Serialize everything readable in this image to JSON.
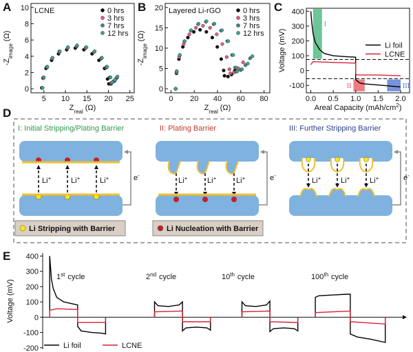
{
  "chart_data": [
    {
      "type": "scatter",
      "panel_label": "A",
      "annotation": "LCNE",
      "x_label": {
        "text": "Z",
        "sub": "real",
        "unit": "(Ω)"
      },
      "y_label": {
        "text": "-Z",
        "sub": "image",
        "unit": "(Ω)"
      },
      "xlim": [
        2,
        26
      ],
      "ylim": [
        -0.5,
        10.5
      ],
      "xticks": [
        5,
        10,
        15,
        20,
        25
      ],
      "yticks": [
        0,
        2,
        4,
        6,
        8,
        10
      ],
      "frame": true,
      "legend": "upper right",
      "series": [
        {
          "name": "0 hrs",
          "color": "#111111",
          "x": [
            4.5,
            4.8,
            5.5,
            6.8,
            8.4,
            10.3,
            12.3,
            14.3,
            16.2,
            17.8,
            19.1,
            19.8,
            20.1,
            20.6,
            21.2
          ],
          "values": [
            0.1,
            1.3,
            2.5,
            3.5,
            4.3,
            4.8,
            5.0,
            4.8,
            4.3,
            3.5,
            2.5,
            1.2,
            0.6,
            0.6,
            0.9
          ]
        },
        {
          "name": "3 hrs",
          "color": "#e0607e",
          "x": [
            4.6,
            4.9,
            5.7,
            6.9,
            8.6,
            10.5,
            12.6,
            14.7,
            16.6,
            18.3,
            19.5,
            20.3,
            20.6,
            21.3,
            21.9
          ],
          "values": [
            0.1,
            1.3,
            2.6,
            3.7,
            4.5,
            5.0,
            5.2,
            5.0,
            4.5,
            3.7,
            2.6,
            1.4,
            0.7,
            0.9,
            1.3
          ]
        },
        {
          "name": "7 hrs",
          "color": "#4a7f8f",
          "x": [
            4.6,
            4.9,
            5.7,
            7.0,
            8.6,
            10.6,
            12.7,
            14.8,
            16.8,
            18.4,
            19.6,
            20.4,
            20.8,
            21.5,
            22.0
          ],
          "values": [
            0.1,
            1.4,
            2.7,
            3.8,
            4.6,
            5.1,
            5.3,
            5.1,
            4.6,
            3.8,
            2.7,
            1.4,
            0.7,
            1.0,
            1.4
          ]
        },
        {
          "name": "12 hrs",
          "color": "#3aa58f",
          "x": [
            4.7,
            5.0,
            5.8,
            7.0,
            8.7,
            10.6,
            12.7,
            14.9,
            16.8,
            18.5,
            19.7,
            20.5,
            20.9,
            21.5,
            22.1
          ],
          "values": [
            0.1,
            1.4,
            2.7,
            3.8,
            4.6,
            5.1,
            5.35,
            5.1,
            4.6,
            3.8,
            2.7,
            1.4,
            0.8,
            1.1,
            1.5
          ]
        }
      ]
    },
    {
      "type": "scatter",
      "panel_label": "B",
      "annotation": "Layered Li-rGO",
      "x_label": {
        "text": "Z",
        "sub": "real",
        "unit": "(Ω)"
      },
      "y_label": {
        "text": "-Z",
        "sub": "image",
        "unit": "(Ω)"
      },
      "xlim": [
        -5,
        85
      ],
      "ylim": [
        -1,
        21
      ],
      "xticks": [
        0,
        20,
        40,
        60,
        80
      ],
      "yticks": [
        0,
        5,
        10,
        15,
        20
      ],
      "frame": true,
      "legend": "upper right",
      "series": [
        {
          "name": "0 hrs",
          "color": "#111111",
          "x": [
            4,
            4.7,
            6.8,
            10.2,
            14.5,
            19.6,
            25,
            30.4,
            35.5,
            39.8,
            43.2,
            45.3,
            46,
            49,
            52,
            55
          ],
          "values": [
            0,
            3.8,
            7.3,
            10.3,
            12.6,
            14.0,
            14.5,
            14.0,
            12.6,
            10.3,
            7.3,
            4.5,
            3.2,
            3.0,
            3.5,
            4.5
          ]
        },
        {
          "name": "3 hrs",
          "color": "#e0607e",
          "x": [
            4,
            4.8,
            7.1,
            10.9,
            15.8,
            21.4,
            27.5,
            33.6,
            39.3,
            44.1,
            47.9,
            50.2,
            51,
            54,
            58,
            62
          ],
          "values": [
            0,
            4.0,
            7.8,
            11.0,
            13.4,
            15.0,
            15.5,
            15.0,
            13.4,
            11.0,
            7.8,
            4.8,
            3.8,
            4.0,
            5.0,
            6.5
          ]
        },
        {
          "name": "7 hrs",
          "color": "#4a7f8f",
          "x": [
            4,
            4.9,
            7.5,
            11.6,
            17,
            23.3,
            30,
            36.7,
            43,
            48.4,
            52.5,
            55.1,
            56,
            60,
            64,
            68
          ],
          "values": [
            0,
            4.3,
            8.3,
            11.7,
            14.3,
            15.9,
            16.5,
            15.9,
            14.3,
            11.7,
            8.3,
            5.2,
            4.2,
            4.6,
            5.8,
            7.5
          ]
        },
        {
          "name": "12 hrs",
          "color": "#3aa58f",
          "x": [
            4,
            4.9,
            7.6,
            11.8,
            17.3,
            23.7,
            30.5,
            37.3,
            43.8,
            49.2,
            53.5,
            56.1,
            57,
            61,
            66,
            70
          ],
          "values": [
            0,
            4.3,
            8.3,
            11.7,
            14.4,
            16.0,
            16.6,
            16.0,
            14.4,
            11.7,
            8.3,
            5.2,
            4.3,
            4.8,
            6.2,
            8.0
          ]
        }
      ]
    },
    {
      "type": "line",
      "panel_label": "C",
      "x_label": {
        "text": "Areal Capacity (mAh/cm",
        "sup": "2",
        "end": ")"
      },
      "y_label": "Voltage (mV)",
      "xlim": [
        -0.1,
        2.2
      ],
      "ylim": [
        -150,
        420
      ],
      "xticks": [
        {
          "value": 0,
          "label": "0.0"
        },
        0.5,
        {
          "value": 1,
          "label": "1.0"
        },
        1.5,
        {
          "value": 2,
          "label": "2.0"
        }
      ],
      "yticks": [
        -100,
        0,
        100,
        200,
        300,
        400
      ],
      "frame": true,
      "legend": "center right",
      "reference_lines": [
        75,
        -55
      ],
      "regions": [
        {
          "label": "I",
          "color": "#3cb371",
          "xlim": [
            0.05,
            0.25
          ],
          "ylim": [
            80,
            415
          ]
        },
        {
          "label": "II",
          "color": "#e8505b",
          "xlim": [
            0.95,
            1.2
          ],
          "ylim": [
            -140,
            -60
          ]
        },
        {
          "label": "III",
          "color": "#4a6fd1",
          "xlim": [
            1.7,
            2.0
          ],
          "ylim": [
            -140,
            -60
          ]
        }
      ],
      "series": [
        {
          "name": "Li foil",
          "color": "#000000",
          "x": [
            0,
            0.02,
            0.05,
            0.1,
            0.2,
            0.3,
            0.5,
            0.7,
            1.0,
            1.0,
            1.05,
            1.1,
            1.2,
            1.4,
            1.6,
            1.8,
            2.0
          ],
          "values": [
            400,
            330,
            250,
            190,
            140,
            115,
            100,
            95,
            90,
            -60,
            -75,
            -85,
            -90,
            -95,
            -100,
            -105,
            -110
          ]
        },
        {
          "name": "LCNE",
          "color": "#d62035",
          "x": [
            0,
            0.05,
            0.5,
            1.0,
            1.0,
            1.05,
            1.5,
            2.0
          ],
          "values": [
            40,
            60,
            55,
            50,
            -25,
            -30,
            -30,
            -35
          ]
        }
      ]
    },
    {
      "type": "line",
      "panel_label": "E",
      "y_label": "Voltage (mV)",
      "xlim": [
        -2,
        100
      ],
      "ylim": [
        -210,
        420
      ],
      "yticks": [
        -200,
        -100,
        0,
        100,
        200,
        300,
        400
      ],
      "frame": false,
      "legend": "lower left",
      "cycle_labels": [
        {
          "number": "1",
          "suffix": "st",
          "text": "cycle"
        },
        {
          "number": "2",
          "suffix": "nd",
          "text": "cycle"
        },
        {
          "number": "10",
          "suffix": "th",
          "text": "cycle"
        },
        {
          "number": "100",
          "suffix": "th",
          "text": "cycle"
        }
      ],
      "series": [
        {
          "name": "Li foil",
          "color": "#000000",
          "x": [
            0,
            0,
            0.5,
            1,
            2,
            4,
            7,
            8,
            8,
            9,
            12,
            15,
            16,
            16,
            null,
            30,
            30,
            31,
            34,
            37,
            38,
            38,
            39,
            42,
            45,
            46,
            46,
            null,
            55,
            55,
            56,
            59,
            62,
            63,
            63,
            64,
            67,
            70,
            71,
            71,
            null,
            76,
            76,
            77,
            81,
            85,
            86,
            86,
            88,
            92,
            96,
            96
          ],
          "values": [
            0,
            400,
            250,
            190,
            130,
            100,
            85,
            80,
            -60,
            -90,
            -100,
            -105,
            -110,
            0,
            null,
            0,
            100,
            75,
            70,
            80,
            100,
            -90,
            -70,
            -65,
            -70,
            -85,
            0,
            null,
            0,
            100,
            75,
            70,
            80,
            105,
            -95,
            -75,
            -70,
            -75,
            -90,
            0,
            null,
            0,
            130,
            140,
            145,
            150,
            150,
            -110,
            -130,
            -145,
            -165,
            0
          ]
        },
        {
          "name": "LCNE",
          "color": "#d62035",
          "x": [
            0,
            0,
            2,
            8,
            8,
            16,
            16,
            null,
            30,
            30,
            38,
            38,
            46,
            46,
            null,
            55,
            55,
            63,
            63,
            71,
            71,
            null,
            76,
            76,
            86,
            86,
            96,
            96
          ],
          "values": [
            0,
            45,
            55,
            50,
            -35,
            -35,
            0,
            null,
            0,
            35,
            40,
            -30,
            -30,
            0,
            null,
            0,
            35,
            40,
            -30,
            -35,
            0,
            null,
            0,
            30,
            40,
            -30,
            -45,
            0
          ]
        }
      ]
    }
  ],
  "diagram": {
    "panel_label": "D",
    "panels": [
      {
        "title": "I: Initial Stripping/Plating Barrier",
        "legend": "Li Stripping with Barrier"
      },
      {
        "title": "II: Plating Barrier",
        "legend": "Li Nucleation with Barrier"
      },
      {
        "title": "III: Further Stripping Barrier"
      }
    ],
    "ion": {
      "base": "Li",
      "sup": "+"
    },
    "electron": {
      "base": "e",
      "sup": "-"
    }
  }
}
